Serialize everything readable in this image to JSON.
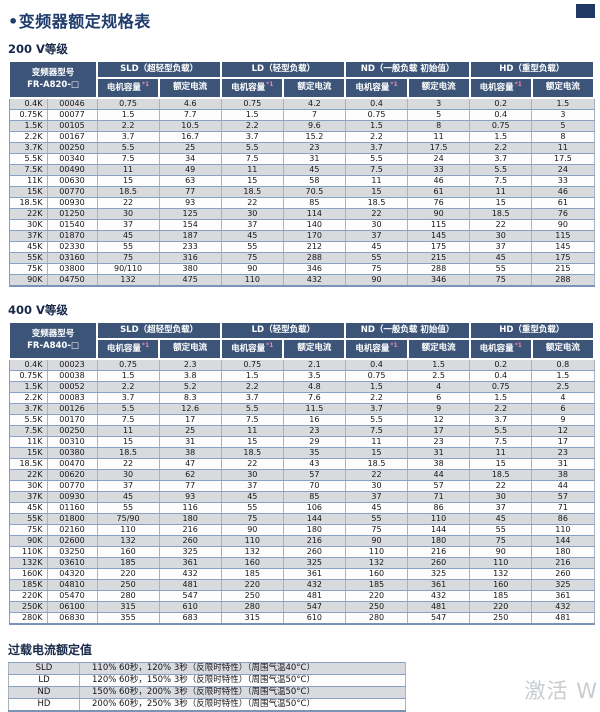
{
  "page": {
    "title": "•变频器额定规格表",
    "watermark": "激活 W"
  },
  "tables": {
    "t200": {
      "heading": "200 V等级",
      "model_label": "变频器型号",
      "model_code": "FR-A820-□",
      "groups": [
        "SLD（超轻型负载）",
        "LD（轻型负载）",
        "ND（一般负载 初始值）",
        "HD（重型负载）"
      ],
      "sub_capacity": "电机容量",
      "capacity_note": "*1",
      "sub_current": "额定电流",
      "rows": [
        [
          "0.4K",
          "00046",
          "0.75",
          "4.6",
          "0.75",
          "4.2",
          "0.4",
          "3",
          "0.2",
          "1.5"
        ],
        [
          "0.75K",
          "00077",
          "1.5",
          "7.7",
          "1.5",
          "7",
          "0.75",
          "5",
          "0.4",
          "3"
        ],
        [
          "1.5K",
          "00105",
          "2.2",
          "10.5",
          "2.2",
          "9.6",
          "1.5",
          "8",
          "0.75",
          "5"
        ],
        [
          "2.2K",
          "00167",
          "3.7",
          "16.7",
          "3.7",
          "15.2",
          "2.2",
          "11",
          "1.5",
          "8"
        ],
        [
          "3.7K",
          "00250",
          "5.5",
          "25",
          "5.5",
          "23",
          "3.7",
          "17.5",
          "2.2",
          "11"
        ],
        [
          "5.5K",
          "00340",
          "7.5",
          "34",
          "7.5",
          "31",
          "5.5",
          "24",
          "3.7",
          "17.5"
        ],
        [
          "7.5K",
          "00490",
          "11",
          "49",
          "11",
          "45",
          "7.5",
          "33",
          "5.5",
          "24"
        ],
        [
          "11K",
          "00630",
          "15",
          "63",
          "15",
          "58",
          "11",
          "46",
          "7.5",
          "33"
        ],
        [
          "15K",
          "00770",
          "18.5",
          "77",
          "18.5",
          "70.5",
          "15",
          "61",
          "11",
          "46"
        ],
        [
          "18.5K",
          "00930",
          "22",
          "93",
          "22",
          "85",
          "18.5",
          "76",
          "15",
          "61"
        ],
        [
          "22K",
          "01250",
          "30",
          "125",
          "30",
          "114",
          "22",
          "90",
          "18.5",
          "76"
        ],
        [
          "30K",
          "01540",
          "37",
          "154",
          "37",
          "140",
          "30",
          "115",
          "22",
          "90"
        ],
        [
          "37K",
          "01870",
          "45",
          "187",
          "45",
          "170",
          "37",
          "145",
          "30",
          "115"
        ],
        [
          "45K",
          "02330",
          "55",
          "233",
          "55",
          "212",
          "45",
          "175",
          "37",
          "145"
        ],
        [
          "55K",
          "03160",
          "75",
          "316",
          "75",
          "288",
          "55",
          "215",
          "45",
          "175"
        ],
        [
          "75K",
          "03800",
          "90/110",
          "380",
          "90",
          "346",
          "75",
          "288",
          "55",
          "215"
        ],
        [
          "90K",
          "04750",
          "132",
          "475",
          "110",
          "432",
          "90",
          "346",
          "75",
          "288"
        ]
      ]
    },
    "t400": {
      "heading": "400 V等级",
      "model_label": "变频器型号",
      "model_code": "FR-A840-□",
      "groups": [
        "SLD（超轻型负载）",
        "LD（轻型负载）",
        "ND（一般负载 初始值）",
        "HD（重型负载）"
      ],
      "sub_capacity": "电机容量",
      "capacity_note": "*1",
      "sub_current": "额定电流",
      "rows": [
        [
          "0.4K",
          "00023",
          "0.75",
          "2.3",
          "0.75",
          "2.1",
          "0.4",
          "1.5",
          "0.2",
          "0.8"
        ],
        [
          "0.75K",
          "00038",
          "1.5",
          "3.8",
          "1.5",
          "3.5",
          "0.75",
          "2.5",
          "0.4",
          "1.5"
        ],
        [
          "1.5K",
          "00052",
          "2.2",
          "5.2",
          "2.2",
          "4.8",
          "1.5",
          "4",
          "0.75",
          "2.5"
        ],
        [
          "2.2K",
          "00083",
          "3.7",
          "8.3",
          "3.7",
          "7.6",
          "2.2",
          "6",
          "1.5",
          "4"
        ],
        [
          "3.7K",
          "00126",
          "5.5",
          "12.6",
          "5.5",
          "11.5",
          "3.7",
          "9",
          "2.2",
          "6"
        ],
        [
          "5.5K",
          "00170",
          "7.5",
          "17",
          "7.5",
          "16",
          "5.5",
          "12",
          "3.7",
          "9"
        ],
        [
          "7.5K",
          "00250",
          "11",
          "25",
          "11",
          "23",
          "7.5",
          "17",
          "5.5",
          "12"
        ],
        [
          "11K",
          "00310",
          "15",
          "31",
          "15",
          "29",
          "11",
          "23",
          "7.5",
          "17"
        ],
        [
          "15K",
          "00380",
          "18.5",
          "38",
          "18.5",
          "35",
          "15",
          "31",
          "11",
          "23"
        ],
        [
          "18.5K",
          "00470",
          "22",
          "47",
          "22",
          "43",
          "18.5",
          "38",
          "15",
          "31"
        ],
        [
          "22K",
          "00620",
          "30",
          "62",
          "30",
          "57",
          "22",
          "44",
          "18.5",
          "38"
        ],
        [
          "30K",
          "00770",
          "37",
          "77",
          "37",
          "70",
          "30",
          "57",
          "22",
          "44"
        ],
        [
          "37K",
          "00930",
          "45",
          "93",
          "45",
          "85",
          "37",
          "71",
          "30",
          "57"
        ],
        [
          "45K",
          "01160",
          "55",
          "116",
          "55",
          "106",
          "45",
          "86",
          "37",
          "71"
        ],
        [
          "55K",
          "01800",
          "75/90",
          "180",
          "75",
          "144",
          "55",
          "110",
          "45",
          "86"
        ],
        [
          "75K",
          "02160",
          "110",
          "216",
          "90",
          "180",
          "75",
          "144",
          "55",
          "110"
        ],
        [
          "90K",
          "02600",
          "132",
          "260",
          "110",
          "216",
          "90",
          "180",
          "75",
          "144"
        ],
        [
          "110K",
          "03250",
          "160",
          "325",
          "132",
          "260",
          "110",
          "216",
          "90",
          "180"
        ],
        [
          "132K",
          "03610",
          "185",
          "361",
          "160",
          "325",
          "132",
          "260",
          "110",
          "216"
        ],
        [
          "160K",
          "04320",
          "220",
          "432",
          "185",
          "361",
          "160",
          "325",
          "132",
          "260"
        ],
        [
          "185K",
          "04810",
          "250",
          "481",
          "220",
          "432",
          "185",
          "361",
          "160",
          "325"
        ],
        [
          "220K",
          "05470",
          "280",
          "547",
          "250",
          "481",
          "220",
          "432",
          "185",
          "361"
        ],
        [
          "250K",
          "06100",
          "315",
          "610",
          "280",
          "547",
          "250",
          "481",
          "220",
          "432"
        ],
        [
          "280K",
          "06830",
          "355",
          "683",
          "315",
          "610",
          "280",
          "547",
          "250",
          "481"
        ]
      ]
    },
    "overload": {
      "heading": "过载电流额定值",
      "rows": [
        [
          "SLD",
          "110% 60秒，120% 3秒（反限时特性）（周围气温40°C）"
        ],
        [
          "LD",
          "120% 60秒，150% 3秒（反限时特性）（周围气温50°C）"
        ],
        [
          "ND",
          "150% 60秒，200% 3秒（反限时特性）（周围气温50°C）"
        ],
        [
          "HD",
          "200% 60秒，250% 3秒（反限时特性）（周围气温50°C）"
        ]
      ]
    }
  }
}
